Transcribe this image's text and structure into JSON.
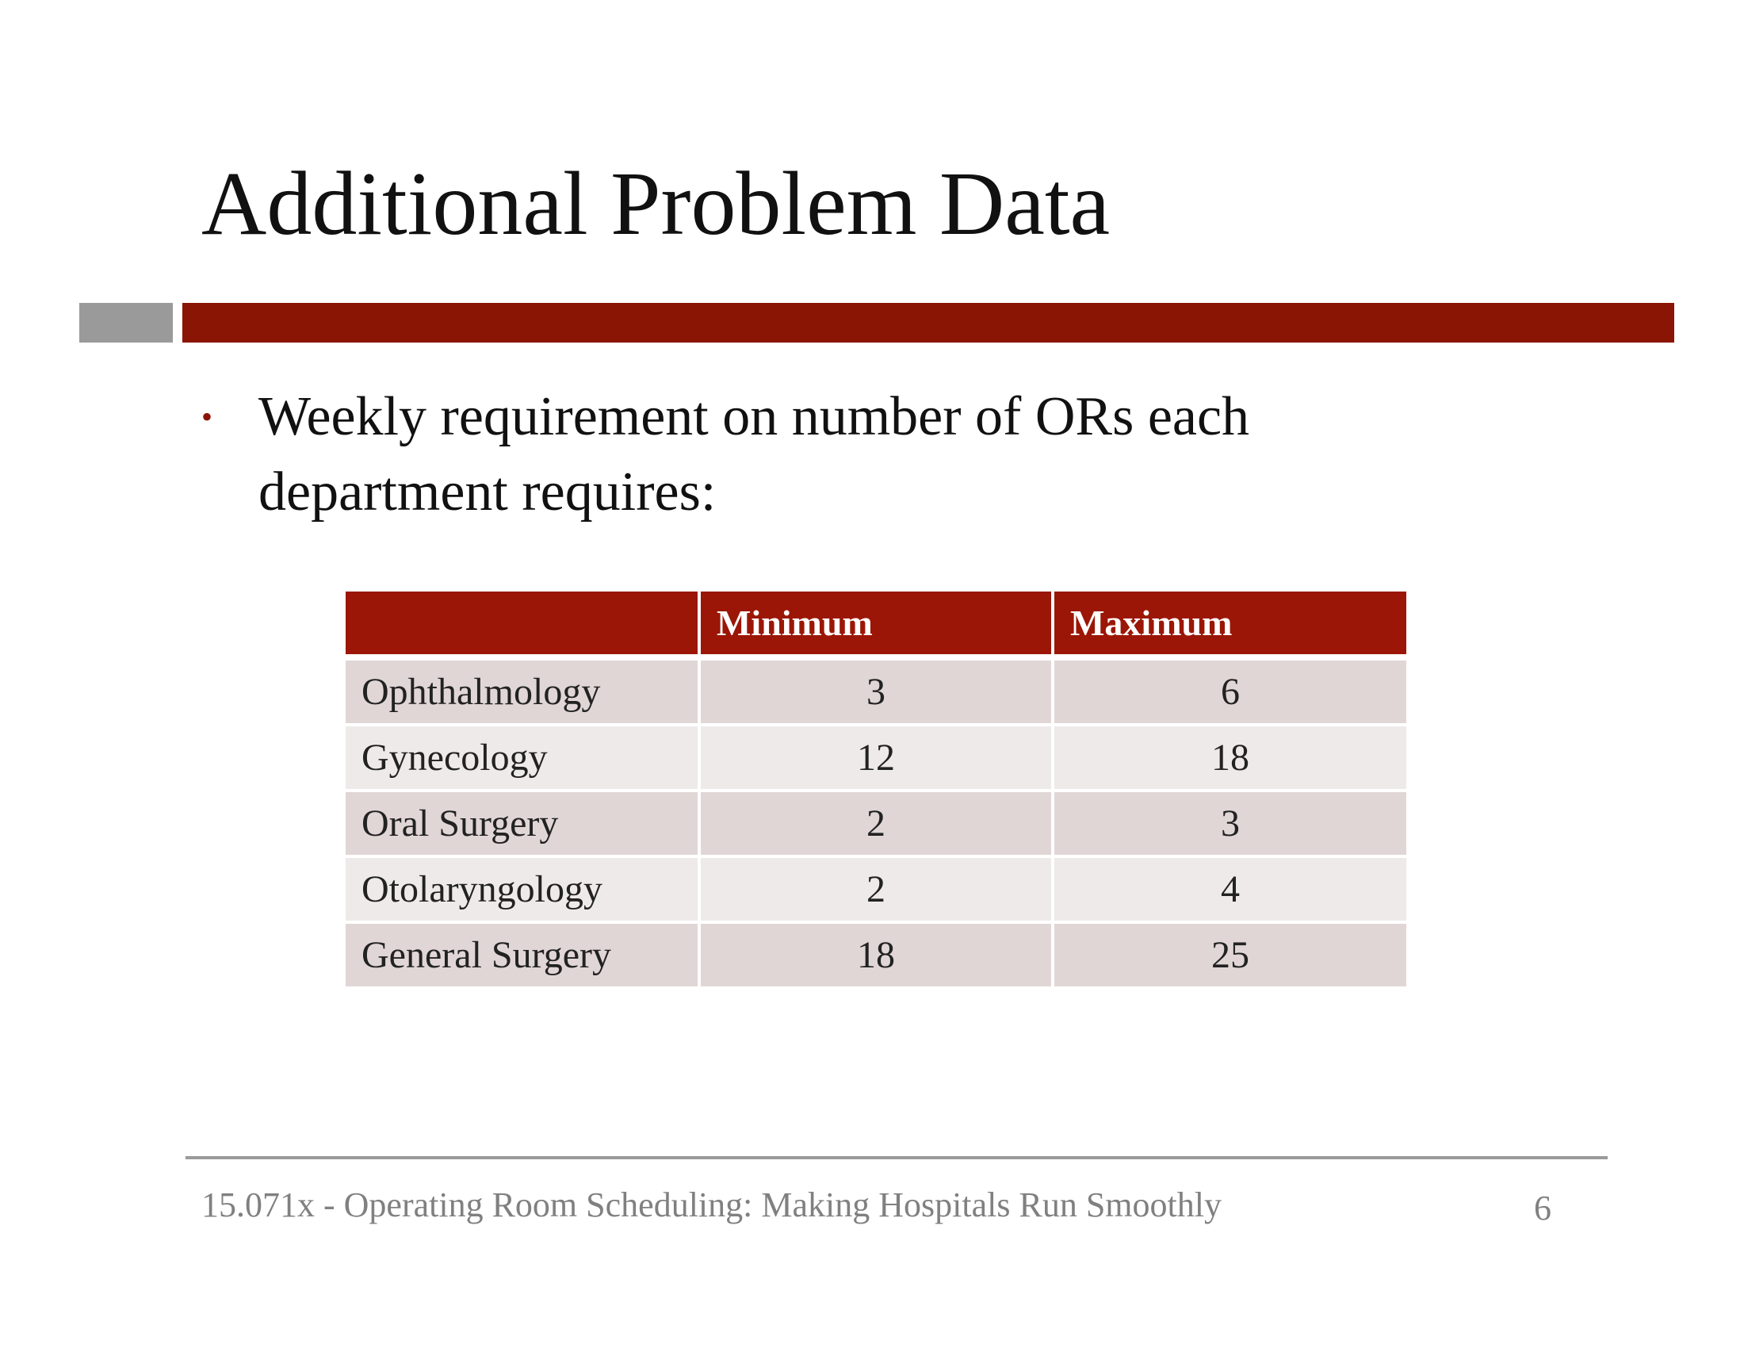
{
  "slide": {
    "title": "Additional Problem Data",
    "bullet_lines": [
      "Weekly requirement on number of  ORs each",
      "department requires:"
    ],
    "bullet_marker": "•",
    "accent_color": "#8a1505",
    "bar_gray_color": "#9a9a9a"
  },
  "table": {
    "headers": [
      "",
      "Minimum",
      "Maximum"
    ],
    "rows": [
      {
        "department": "Ophthalmology",
        "minimum": "3",
        "maximum": "6"
      },
      {
        "department": "Gynecology",
        "minimum": "12",
        "maximum": "18"
      },
      {
        "department": "Oral Surgery",
        "minimum": "2",
        "maximum": "3"
      },
      {
        "department": "Otolaryngology",
        "minimum": "2",
        "maximum": "4"
      },
      {
        "department": "General Surgery",
        "minimum": "18",
        "maximum": "25"
      }
    ],
    "header_color": "#9b1606",
    "row_color_odd": "#e1d6d6",
    "row_color_even": "#efeaea"
  },
  "footer": {
    "text": "15.071x - Operating Room Scheduling: Making Hospitals Run Smoothly",
    "page_number": "6"
  }
}
